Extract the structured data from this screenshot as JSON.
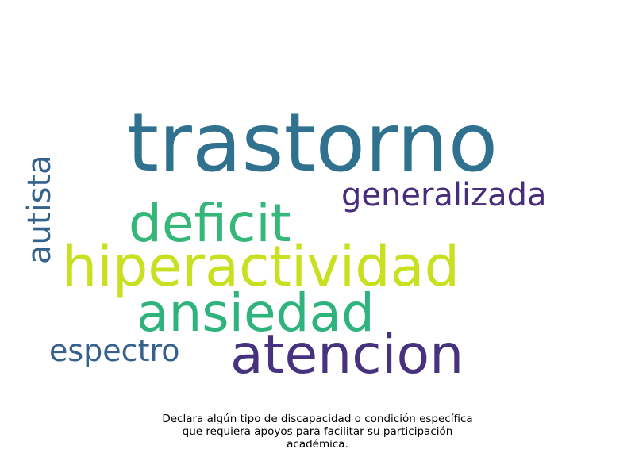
{
  "word_cloud": {
    "words": [
      {
        "key": "trastorno",
        "text": "trastorno",
        "color": "#2f718e"
      },
      {
        "key": "generalizada",
        "text": "generalizada",
        "color": "#472d7b"
      },
      {
        "key": "deficit",
        "text": "deficit",
        "color": "#35b779"
      },
      {
        "key": "autista",
        "text": "autista",
        "color": "#33638d"
      },
      {
        "key": "hiperactividad",
        "text": "hiperactividad",
        "color": "#c8e020"
      },
      {
        "key": "ansiedad",
        "text": "ansiedad",
        "color": "#2eb37c"
      },
      {
        "key": "atencion",
        "text": "atencion",
        "color": "#46327e"
      },
      {
        "key": "espectro",
        "text": "espectro",
        "color": "#36618d"
      }
    ]
  },
  "caption": {
    "lines": [
      "Declara algún tipo de discapacidad o condición específica",
      "que requiera apoyos para facilitar su participación",
      "académica."
    ]
  }
}
